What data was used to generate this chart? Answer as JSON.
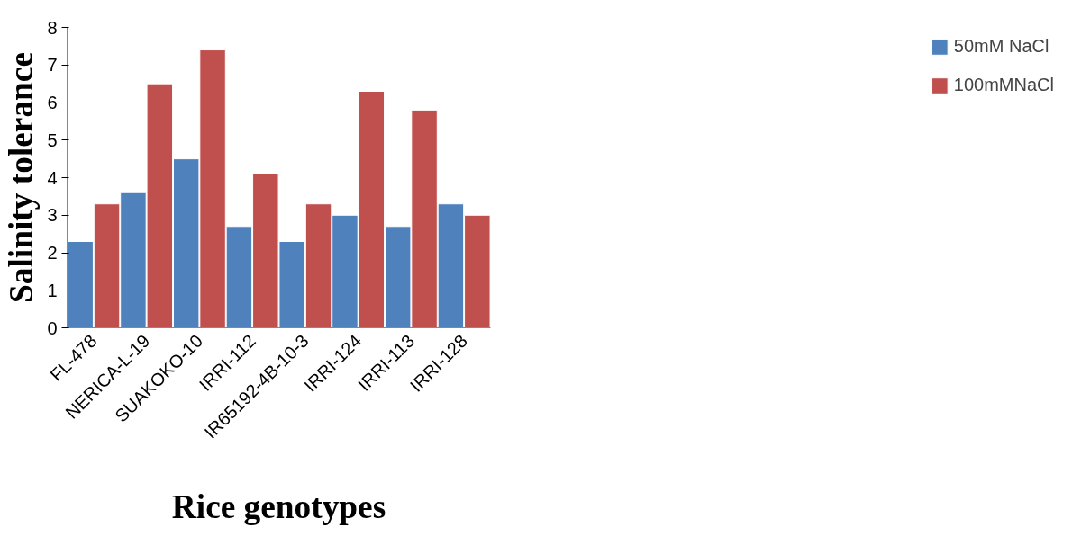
{
  "chart_data": {
    "type": "bar",
    "xlabel": "Rice genotypes",
    "ylabel": "Salinity tolerance",
    "categories": [
      "FL-478",
      "NERICA-L-19",
      "SUAKOKO-10",
      "IRRI-112",
      "IR65192-4B-10-3",
      "IRRI-124",
      "IRRI-113",
      "IRRI-128"
    ],
    "series": [
      {
        "name": "50mM NaCl",
        "color": "#4f81bd",
        "values": [
          2.3,
          3.6,
          4.5,
          2.7,
          2.3,
          3.0,
          2.7,
          3.3
        ]
      },
      {
        "name": "100mMNaCl",
        "color": "#c0504d",
        "values": [
          3.3,
          6.5,
          7.4,
          4.1,
          3.3,
          6.3,
          5.8,
          3.0
        ]
      }
    ],
    "ylim": [
      0,
      8
    ],
    "yticks": [
      0,
      1,
      2,
      3,
      4,
      5,
      6,
      7,
      8
    ],
    "grid": false,
    "legend": "right"
  }
}
